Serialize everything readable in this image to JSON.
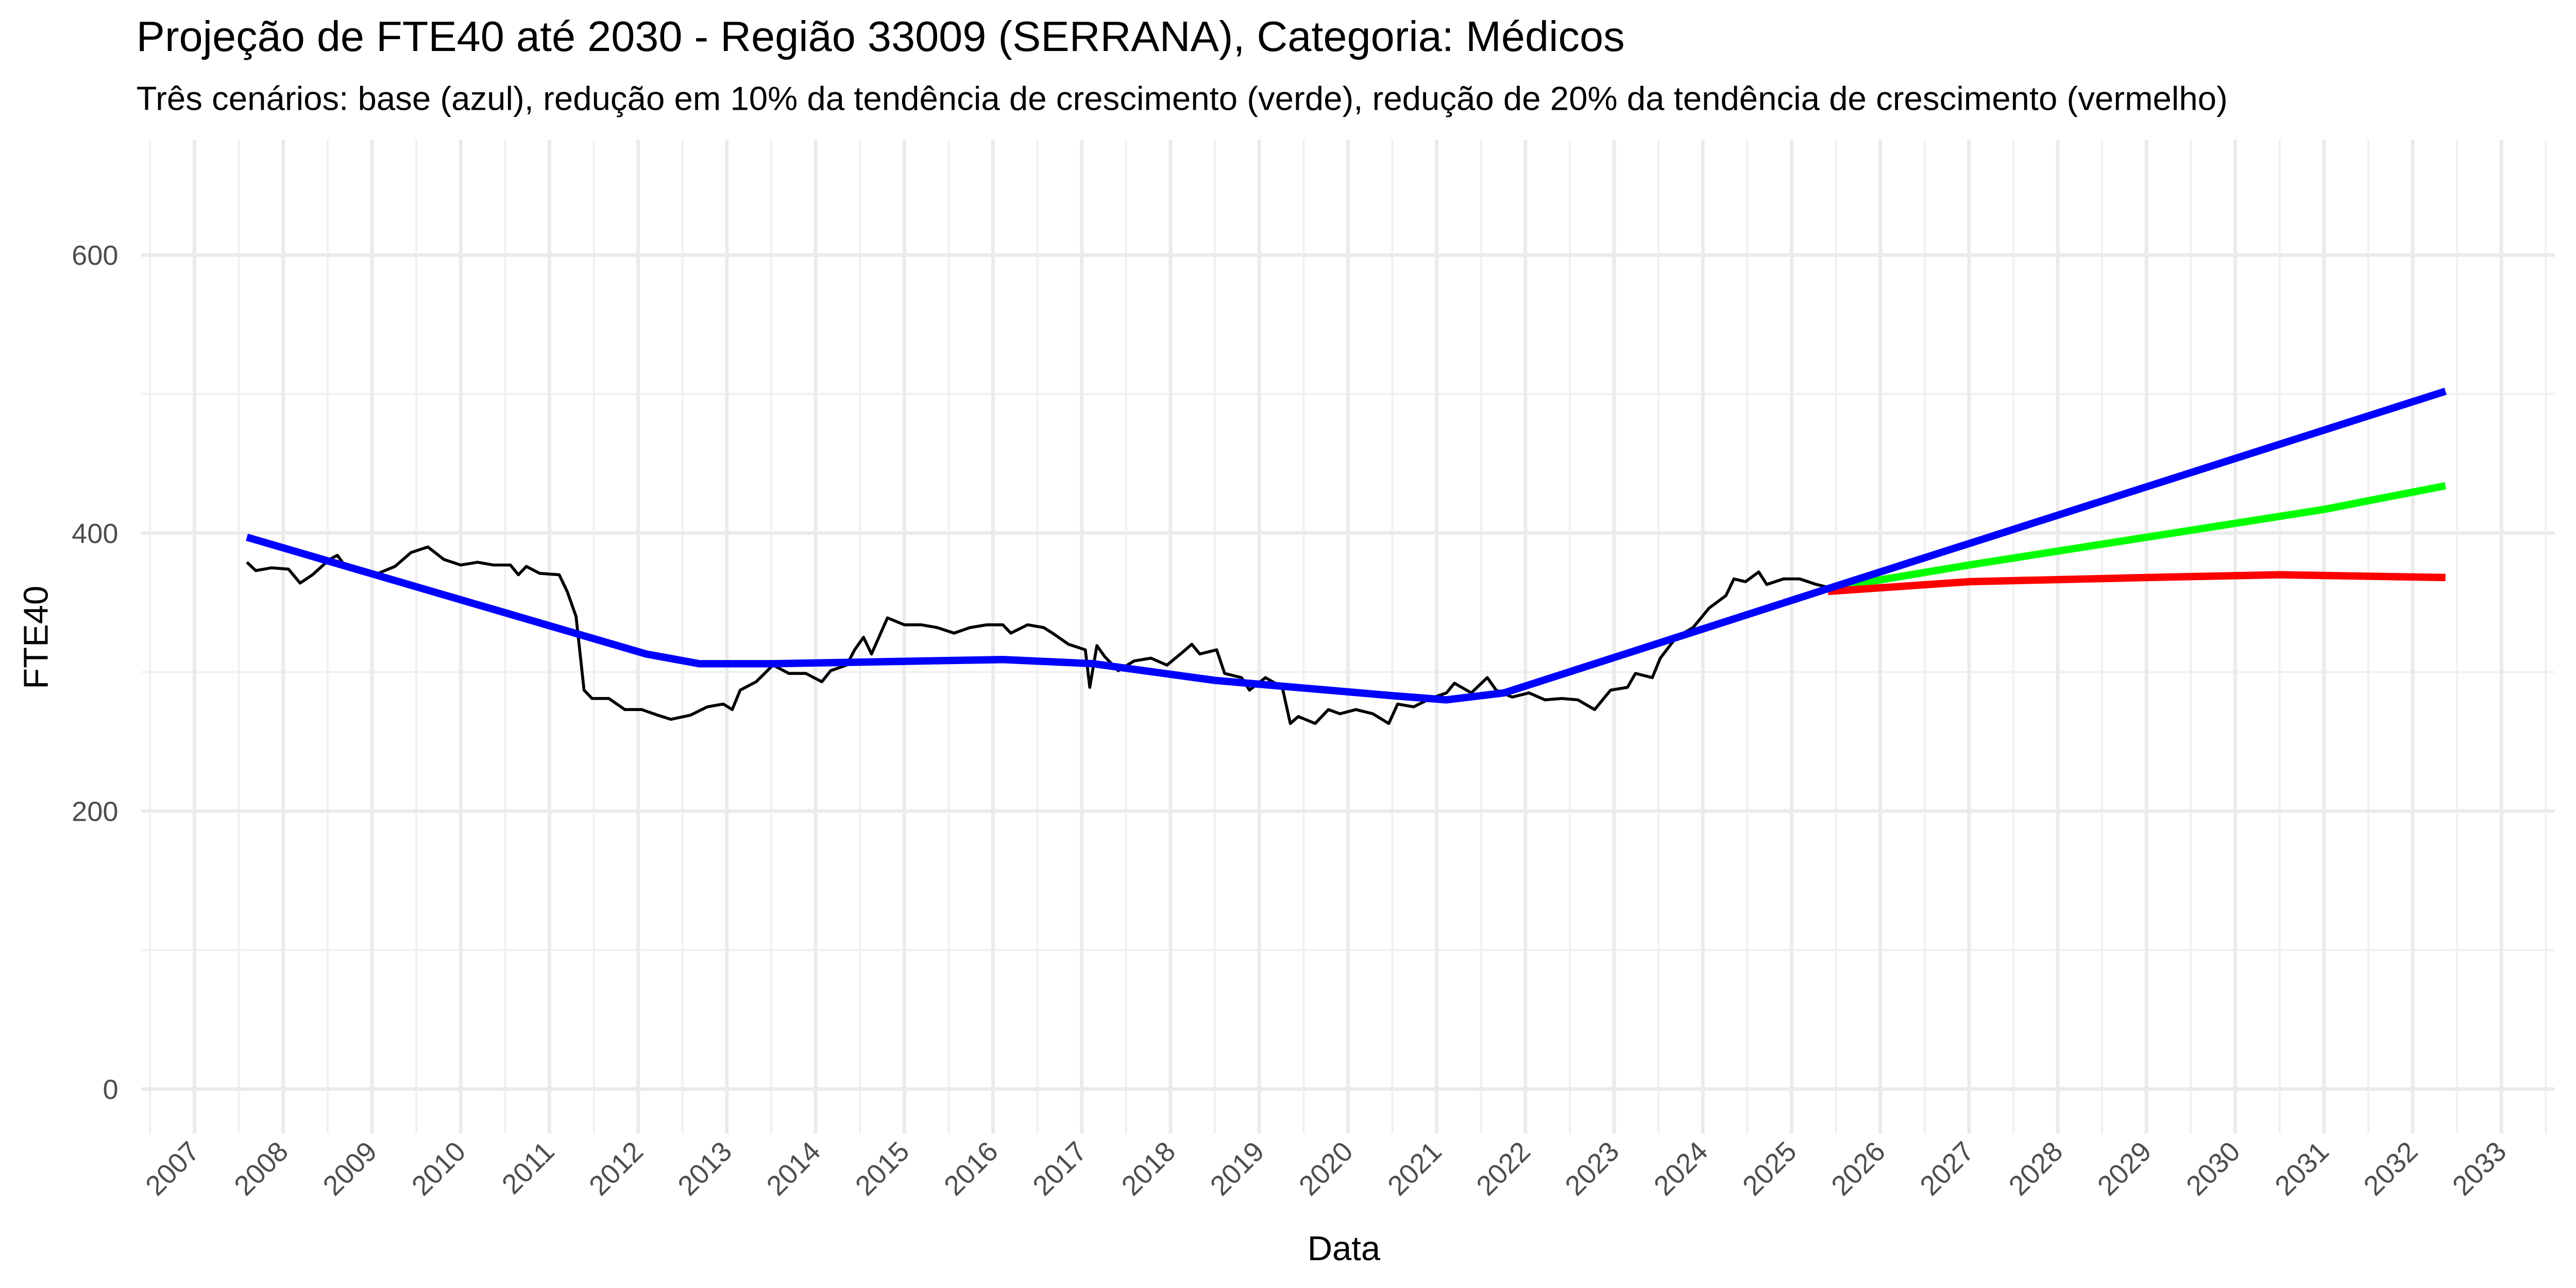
{
  "chart_data": {
    "type": "line",
    "title": "Projeção de FTE40 até 2030 - Região 33009 (SERRANA), Categoria: Médicos",
    "subtitle": "Três cenários: base (azul), redução em 10% da tendência de crescimento (verde), redução de 20% da tendência de crescimento (vermelho)",
    "x_label": "Data",
    "y_label": "FTE40",
    "xlim": [
      2006.4,
      2033.6
    ],
    "ylim": [
      -32,
      683
    ],
    "xticks": [
      2007,
      2008,
      2009,
      2010,
      2011,
      2012,
      2013,
      2014,
      2015,
      2016,
      2017,
      2018,
      2019,
      2020,
      2021,
      2022,
      2023,
      2024,
      2025,
      2026,
      2027,
      2028,
      2029,
      2030,
      2031,
      2032,
      2033
    ],
    "xminor": [
      2006.5,
      2007.5,
      2008.5,
      2009.5,
      2010.5,
      2011.5,
      2012.5,
      2013.5,
      2014.5,
      2015.5,
      2016.5,
      2017.5,
      2018.5,
      2019.5,
      2020.5,
      2021.5,
      2022.5,
      2023.5,
      2024.5,
      2025.5,
      2026.5,
      2027.5,
      2028.5,
      2029.5,
      2030.5,
      2031.5,
      2032.5,
      2033.5
    ],
    "yticks": [
      0,
      200,
      400,
      600
    ],
    "yminor": [
      100,
      300,
      500
    ],
    "grid": true,
    "series": [
      {
        "color": "#000000",
        "width": 1.8,
        "x": [
          2007.59,
          2007.69,
          2007.87,
          2008.06,
          2008.19,
          2008.33,
          2008.52,
          2008.61,
          2008.7,
          2008.89,
          2009.07,
          2009.26,
          2009.44,
          2009.63,
          2009.81,
          2010.0,
          2010.19,
          2010.37,
          2010.56,
          2010.65,
          2010.74,
          2010.89,
          2011.11,
          2011.2,
          2011.3,
          2011.39,
          2011.48,
          2011.67,
          2011.85,
          2012.04,
          2012.22,
          2012.37,
          2012.59,
          2012.78,
          2012.96,
          2013.06,
          2013.15,
          2013.33,
          2013.52,
          2013.7,
          2013.89,
          2014.07,
          2014.17,
          2014.35,
          2014.44,
          2014.54,
          2014.63,
          2014.81,
          2015.0,
          2015.19,
          2015.37,
          2015.56,
          2015.74,
          2015.93,
          2016.11,
          2016.2,
          2016.39,
          2016.57,
          2016.67,
          2016.85,
          2017.04,
          2017.09,
          2017.17,
          2017.26,
          2017.41,
          2017.59,
          2017.78,
          2017.96,
          2018.15,
          2018.24,
          2018.33,
          2018.52,
          2018.61,
          2018.8,
          2018.89,
          2019.07,
          2019.26,
          2019.35,
          2019.44,
          2019.63,
          2019.78,
          2019.91,
          2020.09,
          2020.28,
          2020.46,
          2020.56,
          2020.74,
          2020.93,
          2021.11,
          2021.2,
          2021.39,
          2021.57,
          2021.67,
          2021.85,
          2022.04,
          2022.22,
          2022.41,
          2022.59,
          2022.78,
          2022.96,
          2023.15,
          2023.24,
          2023.43,
          2023.52,
          2023.7,
          2023.89,
          2024.07,
          2024.26,
          2024.35,
          2024.48,
          2024.63,
          2024.72,
          2024.91,
          2025.09,
          2025.28,
          2025.41
        ],
        "values": [
          379,
          373,
          375,
          374,
          364,
          370,
          381,
          384,
          376,
          373,
          371,
          376,
          386,
          390,
          381,
          377,
          379,
          377,
          377,
          370,
          376,
          371,
          370,
          358,
          340,
          287,
          281,
          281,
          273,
          273,
          269,
          266,
          269,
          275,
          277,
          273,
          287,
          293,
          305,
          299,
          299,
          293,
          301,
          305,
          316,
          325,
          313,
          339,
          334,
          334,
          332,
          328,
          332,
          334,
          334,
          328,
          334,
          332,
          328,
          320,
          316,
          289,
          319,
          311,
          301,
          308,
          310,
          305,
          315,
          320,
          313,
          316,
          299,
          296,
          287,
          296,
          289,
          263,
          268,
          263,
          273,
          270,
          273,
          270,
          263,
          277,
          275,
          281,
          285,
          292,
          285,
          296,
          287,
          282,
          285,
          280,
          281,
          280,
          273,
          287,
          289,
          299,
          296,
          310,
          325,
          332,
          346,
          355,
          367,
          365,
          372,
          363,
          367,
          367,
          363,
          361
        ]
      },
      {
        "color": "#00ff00",
        "width": 4.5,
        "x": [
          2025.41,
          2027,
          2029,
          2031,
          2032.37
        ],
        "values": [
          360,
          377,
          397,
          417,
          434
        ]
      },
      {
        "color": "#ff0000",
        "width": 4.5,
        "x": [
          2025.41,
          2027,
          2029,
          2030.5,
          2032.37
        ],
        "values": [
          358,
          365,
          368,
          370,
          368
        ]
      },
      {
        "color": "#0000ff",
        "width": 4.5,
        "x": [
          2007.59,
          2012.09,
          2012.69,
          2013.52,
          2016.11,
          2017.13,
          2018.5,
          2020.5,
          2021.11,
          2021.76,
          2025.41,
          2032.37
        ],
        "values": [
          397,
          313,
          306,
          306,
          309,
          306,
          294,
          283,
          280,
          285,
          360,
          502
        ]
      }
    ]
  }
}
